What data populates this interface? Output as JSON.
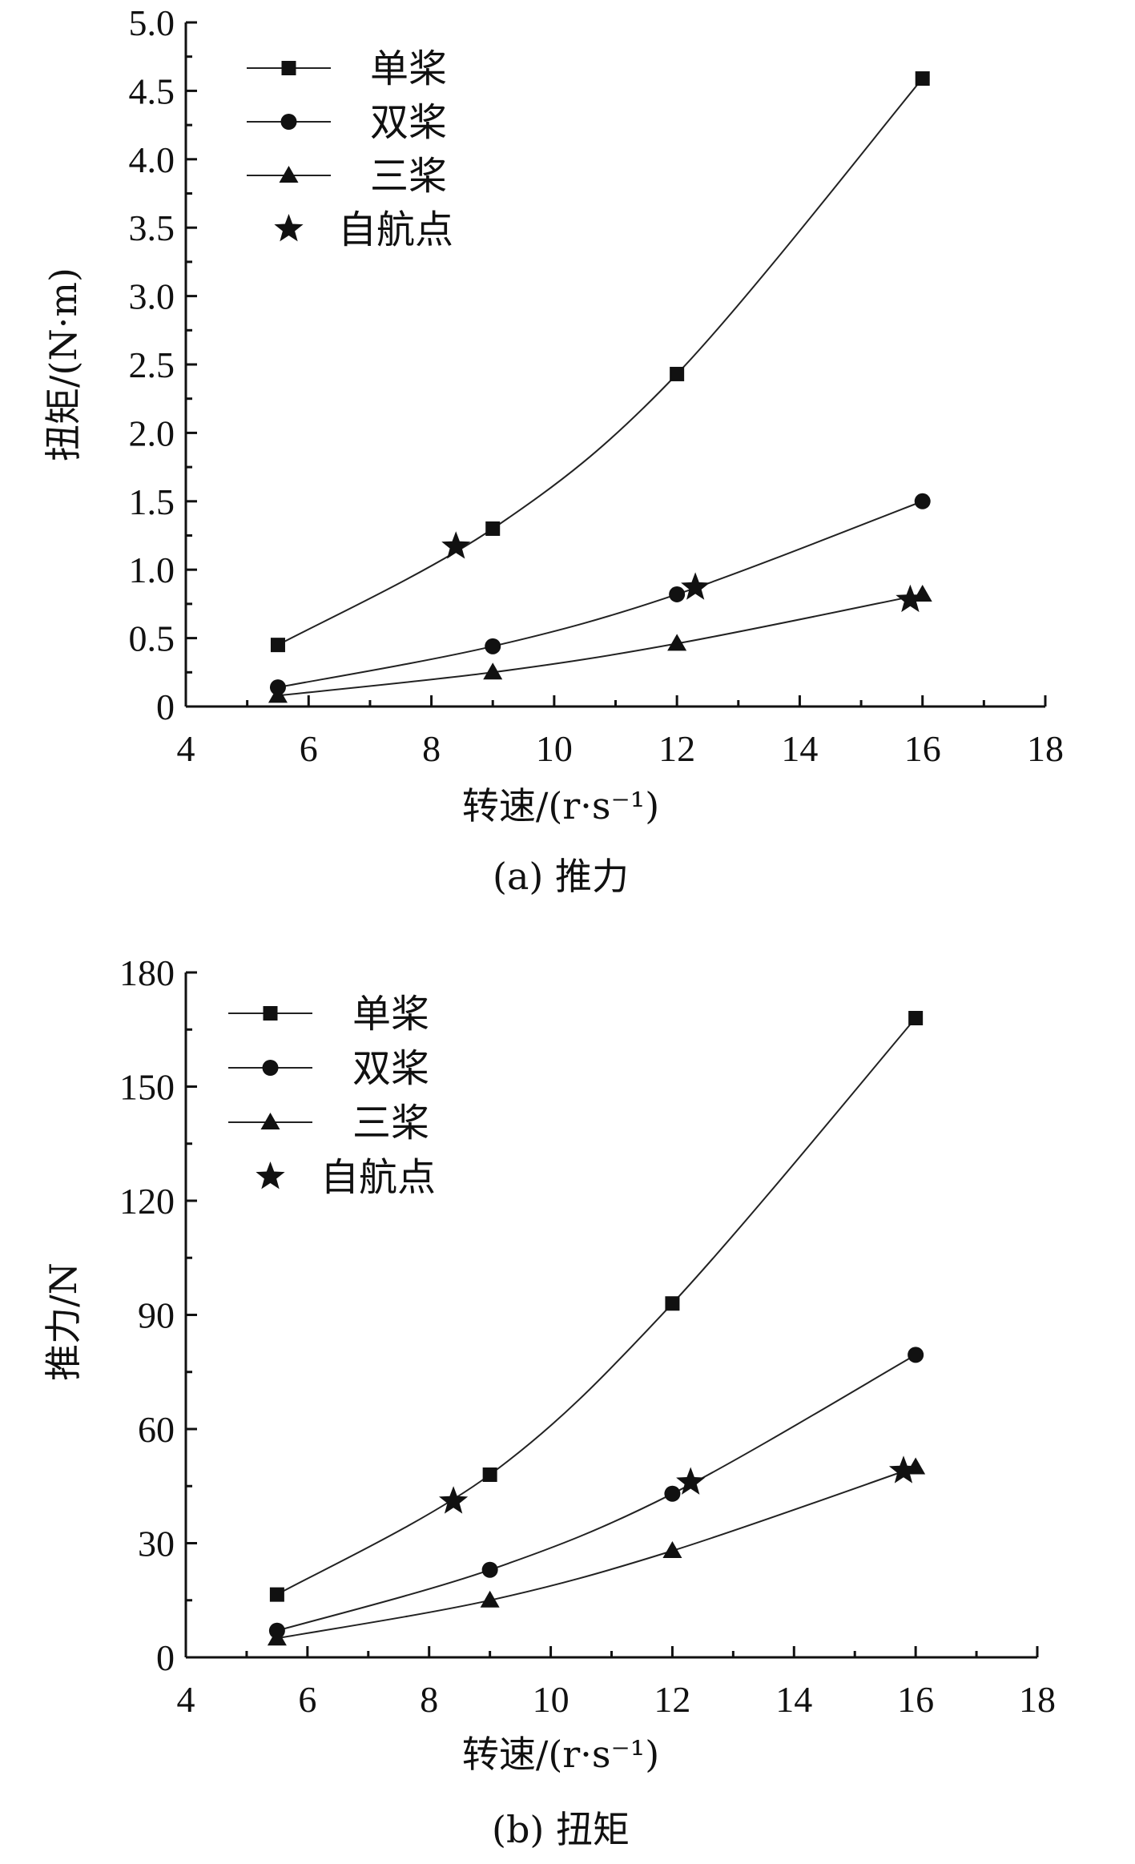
{
  "chart_data": [
    {
      "type": "line",
      "caption": "(a) 推力",
      "xlabel": "转速/(r·s⁻¹)",
      "ylabel": "扭矩/(N·m)",
      "xlim": [
        4,
        18
      ],
      "ylim": [
        0,
        5
      ],
      "xticks": [
        4,
        6,
        8,
        10,
        12,
        14,
        16,
        18
      ],
      "xtick_labels": [
        "4",
        "6",
        "8",
        "10",
        "12",
        "14",
        "16",
        "18"
      ],
      "yticks": [
        0,
        0.5,
        1,
        1.5,
        2,
        2.5,
        3,
        3.5,
        4,
        4.5,
        5
      ],
      "ytick_labels": [
        "0",
        "0.5",
        "1.0",
        "1.5",
        "2.0",
        "2.5",
        "3.0",
        "3.5",
        "4.0",
        "4.5",
        "5.0"
      ],
      "legend_position": "top-left",
      "series": [
        {
          "name": "单桨",
          "marker": "square",
          "x": [
            5.5,
            9,
            12,
            16
          ],
          "y": [
            0.45,
            1.3,
            2.43,
            4.59
          ]
        },
        {
          "name": "双桨",
          "marker": "circle",
          "x": [
            5.5,
            9,
            12,
            16
          ],
          "y": [
            0.14,
            0.44,
            0.82,
            1.5
          ]
        },
        {
          "name": "三桨",
          "marker": "triangle",
          "x": [
            5.5,
            9,
            12,
            16
          ],
          "y": [
            0.08,
            0.25,
            0.46,
            0.82
          ]
        },
        {
          "name": "自航点",
          "marker": "star",
          "x": [
            8.4,
            12.3,
            15.8
          ],
          "y": [
            1.17,
            0.87,
            0.78
          ]
        }
      ]
    },
    {
      "type": "line",
      "caption": "(b) 扭矩",
      "xlabel": "转速/(r·s⁻¹)",
      "ylabel": "推力/N",
      "xlim": [
        4,
        18
      ],
      "ylim": [
        0,
        180
      ],
      "xticks": [
        4,
        6,
        8,
        10,
        12,
        14,
        16,
        18
      ],
      "xtick_labels": [
        "4",
        "6",
        "8",
        "10",
        "12",
        "14",
        "16",
        "18"
      ],
      "yticks": [
        0,
        30,
        60,
        90,
        120,
        150,
        180
      ],
      "ytick_labels": [
        "0",
        "30",
        "60",
        "90",
        "120",
        "150",
        "180"
      ],
      "legend_position": "top-left",
      "series": [
        {
          "name": "单桨",
          "marker": "square",
          "x": [
            5.5,
            9,
            12,
            16
          ],
          "y": [
            16.5,
            48,
            93,
            168
          ]
        },
        {
          "name": "双桨",
          "marker": "circle",
          "x": [
            5.5,
            9,
            12,
            16
          ],
          "y": [
            7,
            23,
            43,
            79.5
          ]
        },
        {
          "name": "三桨",
          "marker": "triangle",
          "x": [
            5.5,
            9,
            12,
            16
          ],
          "y": [
            5,
            15,
            28,
            50
          ]
        },
        {
          "name": "自航点",
          "marker": "star",
          "x": [
            8.4,
            12.3,
            15.8
          ],
          "y": [
            41,
            46,
            49
          ]
        }
      ]
    }
  ]
}
